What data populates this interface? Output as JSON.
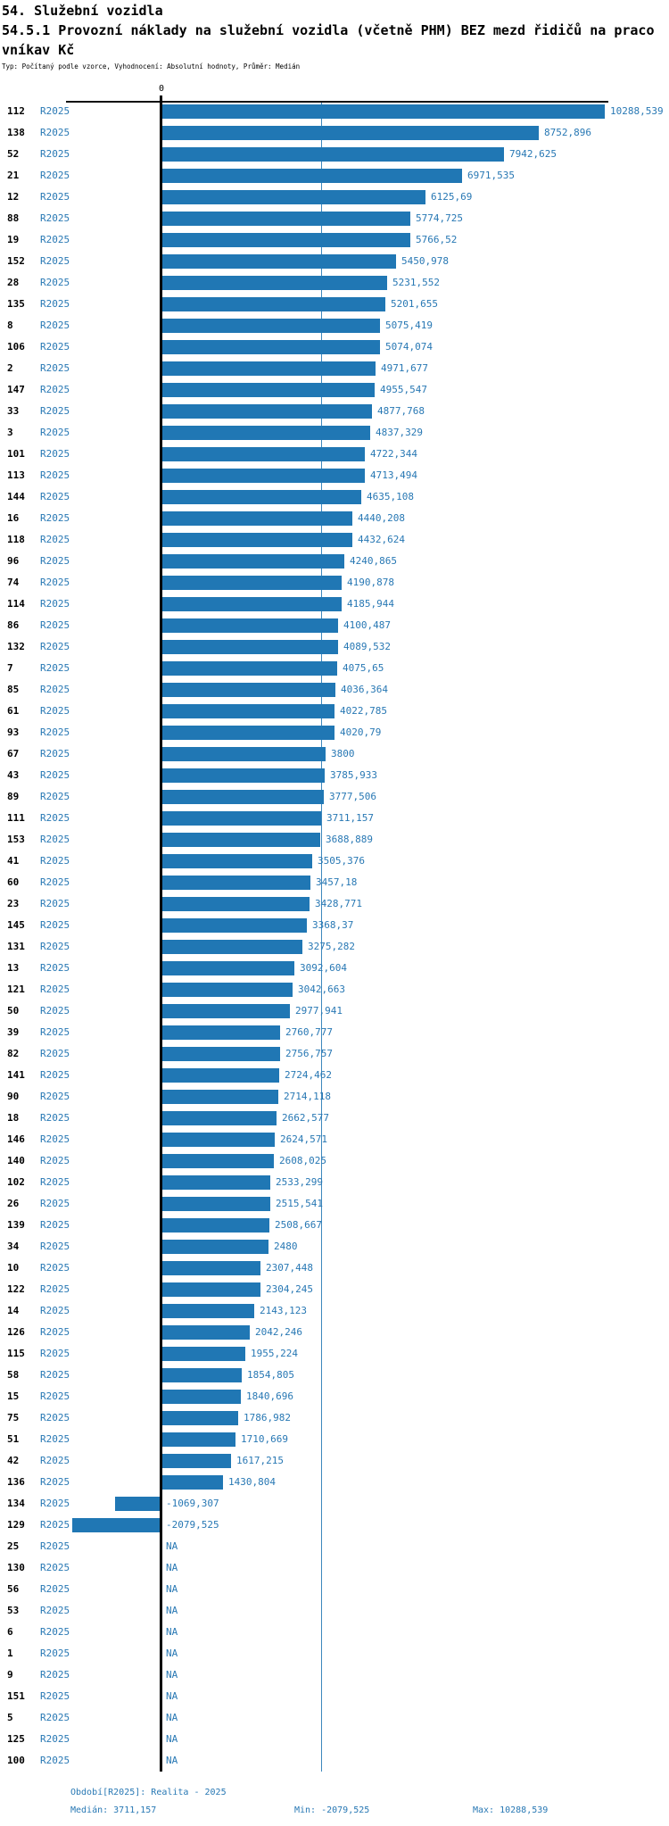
{
  "header": {
    "title_line1": "54. Služební vozidla",
    "title_line2": "54.5.1 Provozní náklady na služební vozidla (včetně PHM) BEZ mezd řidičů na praco",
    "title_line3": "vníkav Kč",
    "meta": "Typ: Počítaný podle vzorce, Vyhodnocení: Absolutní hodnoty, Průměr: Medián"
  },
  "chart_data": {
    "type": "bar",
    "orientation": "horizontal",
    "title": "54.5.1 Provozní náklady na služební vozidla (včetně PHM) BEZ mezd řidičů na pracovníkav Kč",
    "series_label": "R2025",
    "axis_zero_label": "0",
    "xlim": [
      -2079.525,
      10288.539
    ],
    "median": 3711.157,
    "na_text": "NA",
    "colors": {
      "bar": "#2077b4",
      "blue_text": "#2878b4",
      "axis": "#000000",
      "median_line": "#3d87bd"
    },
    "rows": [
      {
        "id": "112",
        "value": 10288.539,
        "label": "10288,539"
      },
      {
        "id": "138",
        "value": 8752.896,
        "label": "8752,896"
      },
      {
        "id": "52",
        "value": 7942.625,
        "label": "7942,625"
      },
      {
        "id": "21",
        "value": 6971.535,
        "label": "6971,535"
      },
      {
        "id": "12",
        "value": 6125.69,
        "label": "6125,69"
      },
      {
        "id": "88",
        "value": 5774.725,
        "label": "5774,725"
      },
      {
        "id": "19",
        "value": 5766.52,
        "label": "5766,52"
      },
      {
        "id": "152",
        "value": 5450.978,
        "label": "5450,978"
      },
      {
        "id": "28",
        "value": 5231.552,
        "label": "5231,552"
      },
      {
        "id": "135",
        "value": 5201.655,
        "label": "5201,655"
      },
      {
        "id": "8",
        "value": 5075.419,
        "label": "5075,419"
      },
      {
        "id": "106",
        "value": 5074.074,
        "label": "5074,074"
      },
      {
        "id": "2",
        "value": 4971.677,
        "label": "4971,677"
      },
      {
        "id": "147",
        "value": 4955.547,
        "label": "4955,547"
      },
      {
        "id": "33",
        "value": 4877.768,
        "label": "4877,768"
      },
      {
        "id": "3",
        "value": 4837.329,
        "label": "4837,329"
      },
      {
        "id": "101",
        "value": 4722.344,
        "label": "4722,344"
      },
      {
        "id": "113",
        "value": 4713.494,
        "label": "4713,494"
      },
      {
        "id": "144",
        "value": 4635.108,
        "label": "4635,108"
      },
      {
        "id": "16",
        "value": 4440.208,
        "label": "4440,208"
      },
      {
        "id": "118",
        "value": 4432.624,
        "label": "4432,624"
      },
      {
        "id": "96",
        "value": 4240.865,
        "label": "4240,865"
      },
      {
        "id": "74",
        "value": 4190.878,
        "label": "4190,878"
      },
      {
        "id": "114",
        "value": 4185.944,
        "label": "4185,944"
      },
      {
        "id": "86",
        "value": 4100.487,
        "label": "4100,487"
      },
      {
        "id": "132",
        "value": 4089.532,
        "label": "4089,532"
      },
      {
        "id": "7",
        "value": 4075.65,
        "label": "4075,65"
      },
      {
        "id": "85",
        "value": 4036.364,
        "label": "4036,364"
      },
      {
        "id": "61",
        "value": 4022.785,
        "label": "4022,785"
      },
      {
        "id": "93",
        "value": 4020.79,
        "label": "4020,79"
      },
      {
        "id": "67",
        "value": 3800,
        "label": "3800"
      },
      {
        "id": "43",
        "value": 3785.933,
        "label": "3785,933"
      },
      {
        "id": "89",
        "value": 3777.506,
        "label": "3777,506"
      },
      {
        "id": "111",
        "value": 3711.157,
        "label": "3711,157"
      },
      {
        "id": "153",
        "value": 3688.889,
        "label": "3688,889"
      },
      {
        "id": "41",
        "value": 3505.376,
        "label": "3505,376"
      },
      {
        "id": "60",
        "value": 3457.18,
        "label": "3457,18"
      },
      {
        "id": "23",
        "value": 3428.771,
        "label": "3428,771"
      },
      {
        "id": "145",
        "value": 3368.37,
        "label": "3368,37"
      },
      {
        "id": "131",
        "value": 3275.282,
        "label": "3275,282"
      },
      {
        "id": "13",
        "value": 3092.604,
        "label": "3092,604"
      },
      {
        "id": "121",
        "value": 3042.663,
        "label": "3042,663"
      },
      {
        "id": "50",
        "value": 2977.941,
        "label": "2977,941"
      },
      {
        "id": "39",
        "value": 2760.777,
        "label": "2760,777"
      },
      {
        "id": "82",
        "value": 2756.757,
        "label": "2756,757"
      },
      {
        "id": "141",
        "value": 2724.462,
        "label": "2724,462"
      },
      {
        "id": "90",
        "value": 2714.118,
        "label": "2714,118"
      },
      {
        "id": "18",
        "value": 2662.577,
        "label": "2662,577"
      },
      {
        "id": "146",
        "value": 2624.571,
        "label": "2624,571"
      },
      {
        "id": "140",
        "value": 2608.025,
        "label": "2608,025"
      },
      {
        "id": "102",
        "value": 2533.299,
        "label": "2533,299"
      },
      {
        "id": "26",
        "value": 2515.541,
        "label": "2515,541"
      },
      {
        "id": "139",
        "value": 2508.667,
        "label": "2508,667"
      },
      {
        "id": "34",
        "value": 2480,
        "label": "2480"
      },
      {
        "id": "10",
        "value": 2307.448,
        "label": "2307,448"
      },
      {
        "id": "122",
        "value": 2304.245,
        "label": "2304,245"
      },
      {
        "id": "14",
        "value": 2143.123,
        "label": "2143,123"
      },
      {
        "id": "126",
        "value": 2042.246,
        "label": "2042,246"
      },
      {
        "id": "115",
        "value": 1955.224,
        "label": "1955,224"
      },
      {
        "id": "58",
        "value": 1854.805,
        "label": "1854,805"
      },
      {
        "id": "15",
        "value": 1840.696,
        "label": "1840,696"
      },
      {
        "id": "75",
        "value": 1786.982,
        "label": "1786,982"
      },
      {
        "id": "51",
        "value": 1710.669,
        "label": "1710,669"
      },
      {
        "id": "42",
        "value": 1617.215,
        "label": "1617,215"
      },
      {
        "id": "136",
        "value": 1430.804,
        "label": "1430,804"
      },
      {
        "id": "134",
        "value": -1069.307,
        "label": "-1069,307"
      },
      {
        "id": "129",
        "value": -2079.525,
        "label": "-2079,525"
      },
      {
        "id": "25",
        "value": null,
        "label": "NA"
      },
      {
        "id": "130",
        "value": null,
        "label": "NA"
      },
      {
        "id": "56",
        "value": null,
        "label": "NA"
      },
      {
        "id": "53",
        "value": null,
        "label": "NA"
      },
      {
        "id": "6",
        "value": null,
        "label": "NA"
      },
      {
        "id": "1",
        "value": null,
        "label": "NA"
      },
      {
        "id": "9",
        "value": null,
        "label": "NA"
      },
      {
        "id": "151",
        "value": null,
        "label": "NA"
      },
      {
        "id": "5",
        "value": null,
        "label": "NA"
      },
      {
        "id": "125",
        "value": null,
        "label": "NA"
      },
      {
        "id": "100",
        "value": null,
        "label": "NA"
      }
    ]
  },
  "footer": {
    "period": "Období[R2025]: Realita - 2025",
    "median": "Medián: 3711,157",
    "min": "Min: -2079,525",
    "max": "Max: 10288,539"
  }
}
